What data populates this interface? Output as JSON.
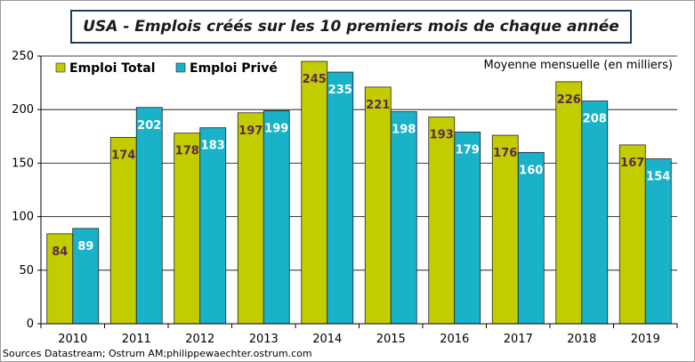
{
  "title": "USA - Emplois  créés sur les 10 premiers mois de chaque année",
  "source": "Sources Datastream; Ostrum AM;philippewaechter.ostrum.com",
  "colors": {
    "series_1": "#c3cc00",
    "series_2": "#19b2c8",
    "series_1_label": "#5a2a4a",
    "series_2_label": "#ffffff"
  },
  "chart_data": {
    "type": "bar",
    "title": "USA - Emplois  créés sur les 10 premiers mois de chaque année",
    "annotation": "Moyenne mensuelle (en milliers)",
    "categories": [
      "2010",
      "2011",
      "2012",
      "2013",
      "2014",
      "2015",
      "2016",
      "2017",
      "2018",
      "2019"
    ],
    "series": [
      {
        "name": "Emploi Total",
        "values": [
          84,
          174,
          178,
          197,
          245,
          221,
          193,
          176,
          226,
          167
        ]
      },
      {
        "name": "Emploi Privé",
        "values": [
          89,
          202,
          183,
          199,
          235,
          198,
          179,
          160,
          208,
          154
        ]
      }
    ],
    "ylim": [
      0,
      250
    ],
    "yticks": [
      0,
      50,
      100,
      150,
      200,
      250
    ],
    "grid": true,
    "legend": "top-left",
    "xlabel": "",
    "ylabel": ""
  }
}
